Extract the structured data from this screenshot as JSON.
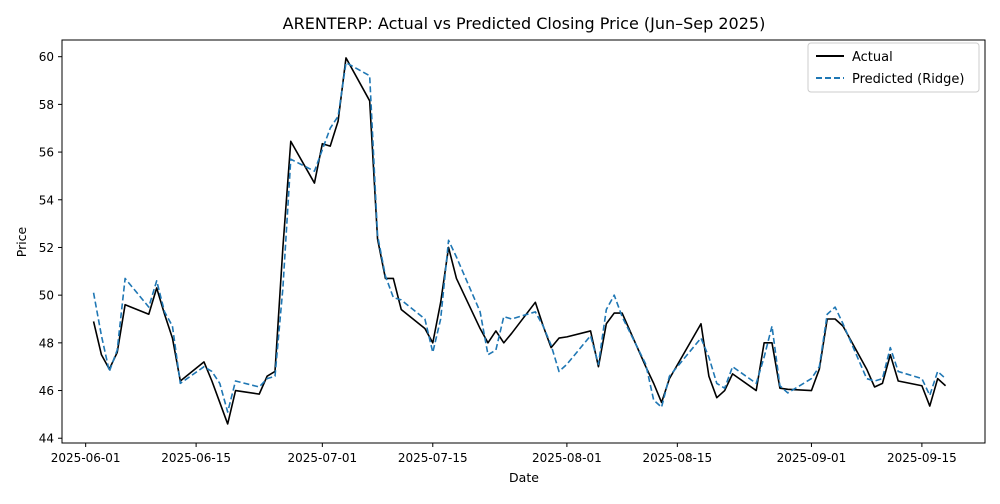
{
  "chart_data": {
    "type": "line",
    "title": "ARENTERP: Actual vs Predicted Closing Price (Jun–Sep 2025)",
    "xlabel": "Date",
    "ylabel": "Price",
    "x_axis_type": "date",
    "xlim": [
      "2025-05-29",
      "2025-09-23"
    ],
    "ylim": [
      43.8,
      60.7
    ],
    "grid": false,
    "legend_position": "top-right",
    "x_ticks": [
      "2025-06-01",
      "2025-06-15",
      "2025-07-01",
      "2025-07-15",
      "2025-08-01",
      "2025-08-15",
      "2025-09-01",
      "2025-09-15"
    ],
    "y_ticks": [
      44,
      46,
      48,
      50,
      52,
      54,
      56,
      58,
      60
    ],
    "x": [
      "2025-06-02",
      "2025-06-03",
      "2025-06-04",
      "2025-06-05",
      "2025-06-06",
      "2025-06-09",
      "2025-06-10",
      "2025-06-11",
      "2025-06-12",
      "2025-06-13",
      "2025-06-16",
      "2025-06-17",
      "2025-06-18",
      "2025-06-19",
      "2025-06-20",
      "2025-06-23",
      "2025-06-24",
      "2025-06-25",
      "2025-06-26",
      "2025-06-27",
      "2025-06-30",
      "2025-07-01",
      "2025-07-02",
      "2025-07-03",
      "2025-07-04",
      "2025-07-07",
      "2025-07-08",
      "2025-07-09",
      "2025-07-10",
      "2025-07-11",
      "2025-07-14",
      "2025-07-15",
      "2025-07-16",
      "2025-07-17",
      "2025-07-18",
      "2025-07-21",
      "2025-07-22",
      "2025-07-23",
      "2025-07-24",
      "2025-07-25",
      "2025-07-28",
      "2025-07-29",
      "2025-07-30",
      "2025-07-31",
      "2025-08-01",
      "2025-08-04",
      "2025-08-05",
      "2025-08-06",
      "2025-08-07",
      "2025-08-08",
      "2025-08-11",
      "2025-08-12",
      "2025-08-13",
      "2025-08-14",
      "2025-08-18",
      "2025-08-19",
      "2025-08-20",
      "2025-08-21",
      "2025-08-22",
      "2025-08-25",
      "2025-08-26",
      "2025-08-27",
      "2025-08-28",
      "2025-08-29",
      "2025-09-01",
      "2025-09-02",
      "2025-09-03",
      "2025-09-04",
      "2025-09-05",
      "2025-09-08",
      "2025-09-09",
      "2025-09-10",
      "2025-09-11",
      "2025-09-12",
      "2025-09-15",
      "2025-09-16",
      "2025-09-17",
      "2025-09-18"
    ],
    "series": [
      {
        "name": "Actual",
        "color": "#000000",
        "style": "solid",
        "values": [
          48.9,
          47.5,
          46.9,
          47.6,
          49.6,
          49.2,
          50.3,
          49.2,
          48.2,
          46.4,
          47.2,
          46.4,
          45.5,
          44.6,
          46.0,
          45.85,
          46.6,
          46.8,
          52.0,
          56.45,
          54.7,
          56.35,
          56.25,
          57.3,
          59.95,
          58.15,
          52.35,
          50.7,
          50.7,
          49.4,
          48.6,
          48.0,
          49.7,
          52.0,
          50.7,
          48.6,
          48.0,
          48.5,
          48.0,
          48.4,
          49.7,
          48.7,
          47.8,
          48.2,
          48.25,
          48.5,
          47.0,
          48.8,
          49.25,
          49.25,
          47.0,
          46.3,
          45.5,
          46.5,
          48.8,
          46.6,
          45.7,
          46.0,
          46.7,
          46.0,
          48.0,
          48.0,
          46.1,
          46.05,
          46.0,
          46.9,
          49.0,
          49.0,
          48.7,
          46.9,
          46.15,
          46.3,
          47.5,
          46.4,
          46.2,
          45.35,
          46.5,
          46.2
        ]
      },
      {
        "name": "Predicted (Ridge)",
        "color": "#1f77b4",
        "style": "dashed",
        "values": [
          50.1,
          48.3,
          46.8,
          47.7,
          50.7,
          49.5,
          50.6,
          49.3,
          48.7,
          46.3,
          47.0,
          46.8,
          46.3,
          45.1,
          46.4,
          46.15,
          46.5,
          46.6,
          50.3,
          55.7,
          55.2,
          56.1,
          57.0,
          57.5,
          59.75,
          59.2,
          52.5,
          50.8,
          49.9,
          49.8,
          49.0,
          47.6,
          49.0,
          52.3,
          51.6,
          49.3,
          47.5,
          47.7,
          49.1,
          49.0,
          49.3,
          48.7,
          47.9,
          46.8,
          47.1,
          48.3,
          47.1,
          49.4,
          50.0,
          49.1,
          47.1,
          45.6,
          45.3,
          46.6,
          48.2,
          47.4,
          46.3,
          46.1,
          47.0,
          46.3,
          47.4,
          48.7,
          46.2,
          45.9,
          46.5,
          47.0,
          49.2,
          49.5,
          48.8,
          46.5,
          46.4,
          46.5,
          47.8,
          46.8,
          46.5,
          45.8,
          46.8,
          46.5
        ]
      }
    ]
  }
}
